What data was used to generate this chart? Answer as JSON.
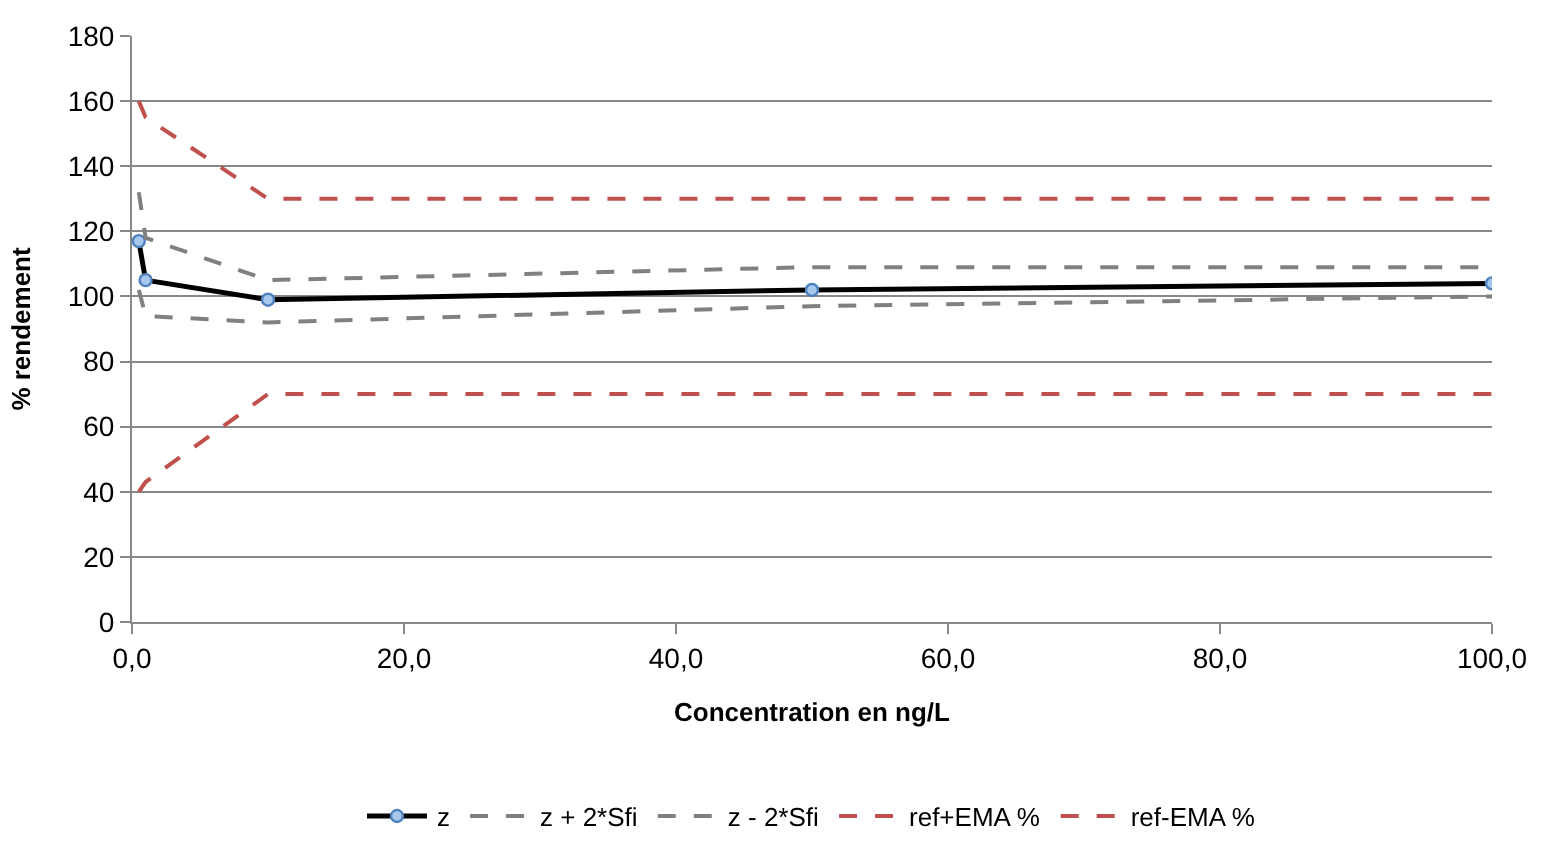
{
  "chart_data": {
    "type": "line",
    "xlabel": "Concentration en ng/L",
    "ylabel": "% rendement",
    "x": [
      0.5,
      1,
      10,
      50,
      100
    ],
    "series": [
      {
        "name": "z",
        "color": "#000000",
        "values": [
          117,
          105,
          99,
          102,
          104
        ],
        "marker": "circle",
        "line_style": "solid"
      },
      {
        "name": "z + 2*Sfi",
        "color": "#808080",
        "values": [
          132,
          118,
          105,
          109,
          109
        ],
        "marker": "none",
        "line_style": "dashed"
      },
      {
        "name": "z - 2*Sfi",
        "color": "#808080",
        "values": [
          102,
          94,
          92,
          97,
          100
        ],
        "marker": "none",
        "line_style": "dashed"
      },
      {
        "name": "ref+EMA %",
        "color": "#c0504d",
        "values": [
          160,
          155,
          130,
          130,
          130
        ],
        "marker": "none",
        "line_style": "dashed"
      },
      {
        "name": "ref-EMA %",
        "color": "#c0504d",
        "values": [
          40,
          43,
          70,
          70,
          70
        ],
        "marker": "none",
        "line_style": "dashed"
      }
    ],
    "xlim": [
      0,
      100
    ],
    "xticks": [
      {
        "value": 0,
        "label": "0,0"
      },
      {
        "value": 20,
        "label": "20,0"
      },
      {
        "value": 40,
        "label": "40,0"
      },
      {
        "value": 60,
        "label": "60,0"
      },
      {
        "value": 80,
        "label": "80,0"
      },
      {
        "value": 100,
        "label": "100,0"
      }
    ],
    "ylim": [
      0,
      180
    ],
    "yticks": [
      0,
      20,
      40,
      60,
      80,
      100,
      120,
      140,
      160,
      180
    ],
    "grid": "y",
    "legend": "bottom"
  }
}
